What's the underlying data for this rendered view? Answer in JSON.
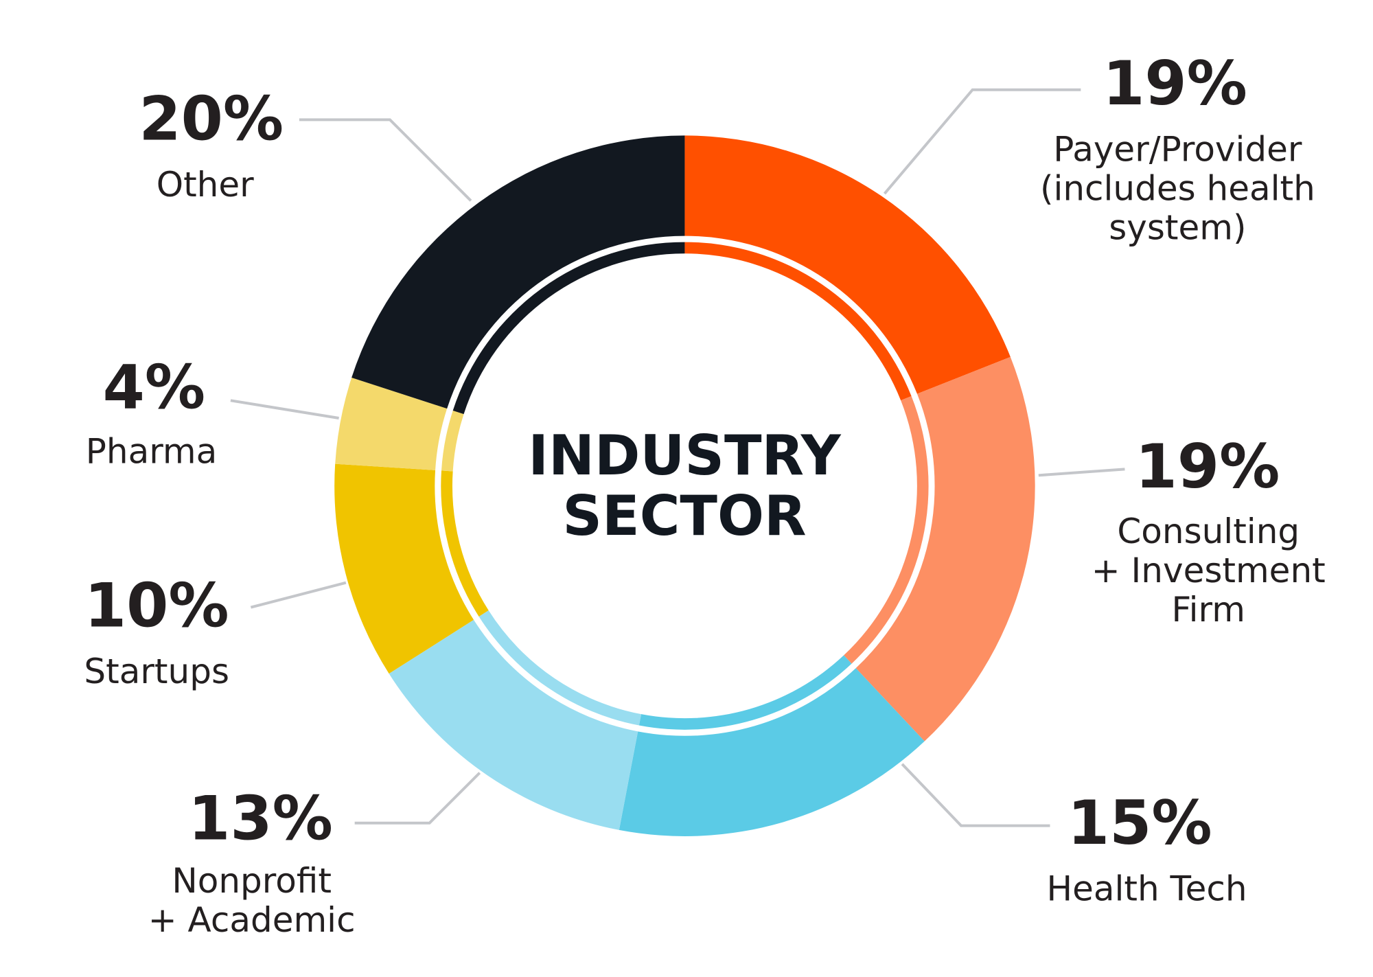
{
  "chart_data": {
    "type": "donut",
    "title": "INDUSTRY\nSECTOR",
    "categories": [
      "Payer/Provider\n(includes health\nsystem)",
      "Consulting\n+ Investment\nFirm",
      "Health Tech",
      "Nonprofit\n+ Academic",
      "Startups",
      "Pharma",
      "Other"
    ],
    "values": [
      19,
      19,
      15,
      13,
      10,
      4,
      20
    ],
    "value_labels": [
      "19%",
      "19%",
      "15%",
      "13%",
      "10%",
      "4%",
      "20%"
    ],
    "colors": [
      "#ff5000",
      "#fd8f63",
      "#5bcbe6",
      "#99ddf0",
      "#f0c400",
      "#f4d96b",
      "#121820"
    ]
  }
}
